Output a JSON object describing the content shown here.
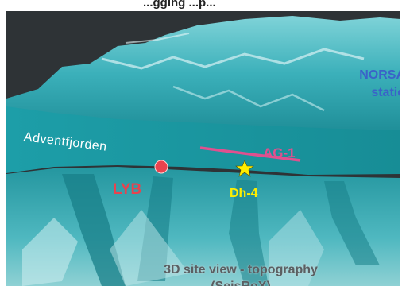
{
  "header_cut": "...gging ...p...",
  "map": {
    "fjord_label": "Adventfjorden",
    "profile_label": "AG-1",
    "city_label": "LYB",
    "borehole_label": "Dh-4",
    "station_line1": "NORSA",
    "station_line2": "statio",
    "caption_line1": "3D site view - topography",
    "caption_line2": "(SeisRoX)"
  },
  "colors": {
    "terrain": "#2fa3ae",
    "fjord": "#1a99a3",
    "profile": "#e0508f",
    "city": "#e8434e",
    "borehole": "#ffee00",
    "station": "#3a63c8"
  }
}
